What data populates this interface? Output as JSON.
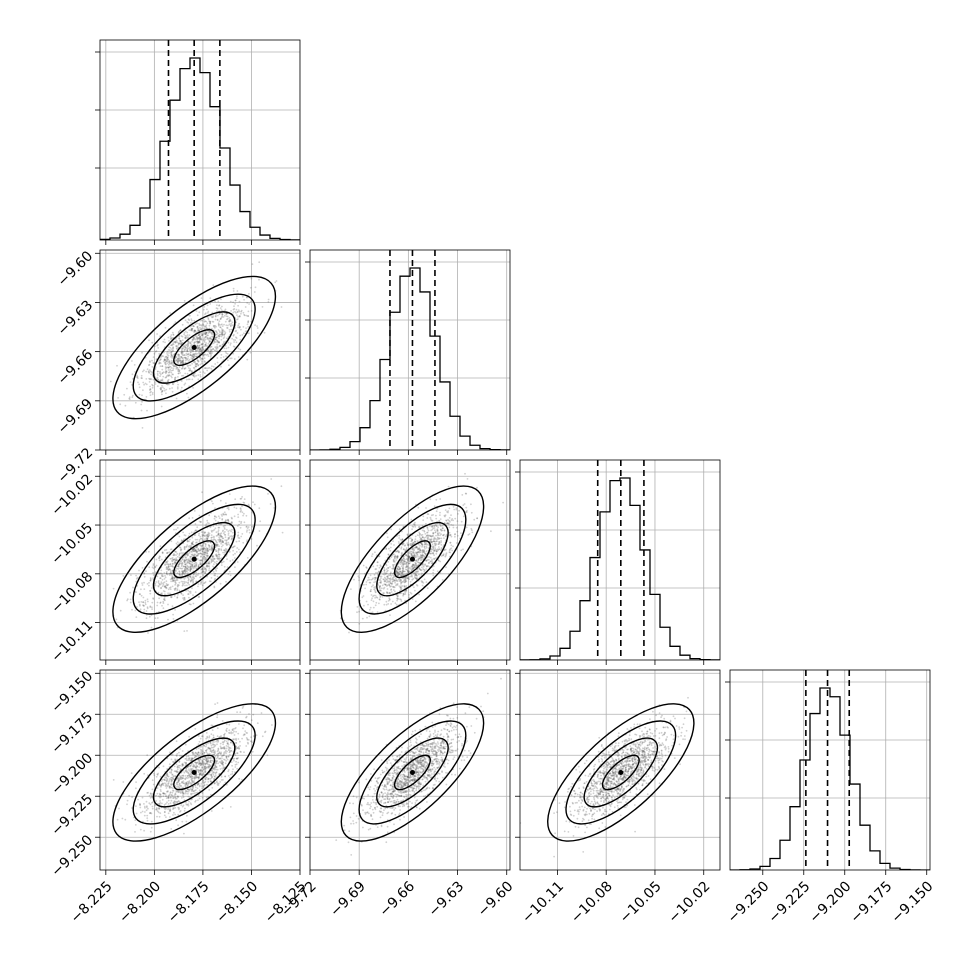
{
  "chart_data": {
    "type": "corner",
    "title": "",
    "grid": true,
    "quantiles": [
      0.16,
      0.5,
      0.84
    ],
    "parameters": [
      {
        "name": "",
        "range": [
          -8.228,
          -8.125
        ],
        "median": -8.1795,
        "sigma": 0.0135,
        "ticks": [
          -8.225,
          -8.2,
          -8.175,
          -8.15,
          -8.125
        ],
        "tick_labels": [
          "−8.225",
          "−8.200",
          "−8.175",
          "−8.150",
          "−8.125"
        ],
        "hist_ticks": [
          0.06,
          0.35,
          0.64
        ]
      },
      {
        "name": "",
        "range": [
          -9.72,
          -9.598
        ],
        "median": -9.6575,
        "sigma": 0.014,
        "ticks": [
          -9.72,
          -9.69,
          -9.66,
          -9.63,
          -9.6
        ],
        "tick_labels": [
          "−9.72",
          "−9.69",
          "−9.66",
          "−9.63",
          "−9.60"
        ],
        "hist_ticks": [
          0.06,
          0.35,
          0.64
        ]
      },
      {
        "name": "",
        "range": [
          -10.133,
          -10.01
        ],
        "median": -10.071,
        "sigma": 0.0145,
        "ticks": [
          -10.11,
          -10.08,
          -10.05,
          -10.02
        ],
        "tick_labels": [
          "−10.11",
          "−10.08",
          "−10.05",
          "−10.02"
        ],
        "hist_ticks": [
          0.06,
          0.35,
          0.64
        ]
      },
      {
        "name": "",
        "range": [
          -9.27,
          -9.148
        ],
        "median": -9.2105,
        "sigma": 0.0135,
        "ticks": [
          -9.25,
          -9.225,
          -9.2,
          -9.175,
          -9.15
        ],
        "tick_labels": [
          "−9.250",
          "−9.225",
          "−9.200",
          "−9.175",
          "−9.150"
        ],
        "hist_ticks": [
          0.06,
          0.35,
          0.64
        ]
      }
    ],
    "correlation": 0.72,
    "contour_levels_sigma": [
      0.5,
      1.0,
      1.5,
      2.0
    ]
  }
}
